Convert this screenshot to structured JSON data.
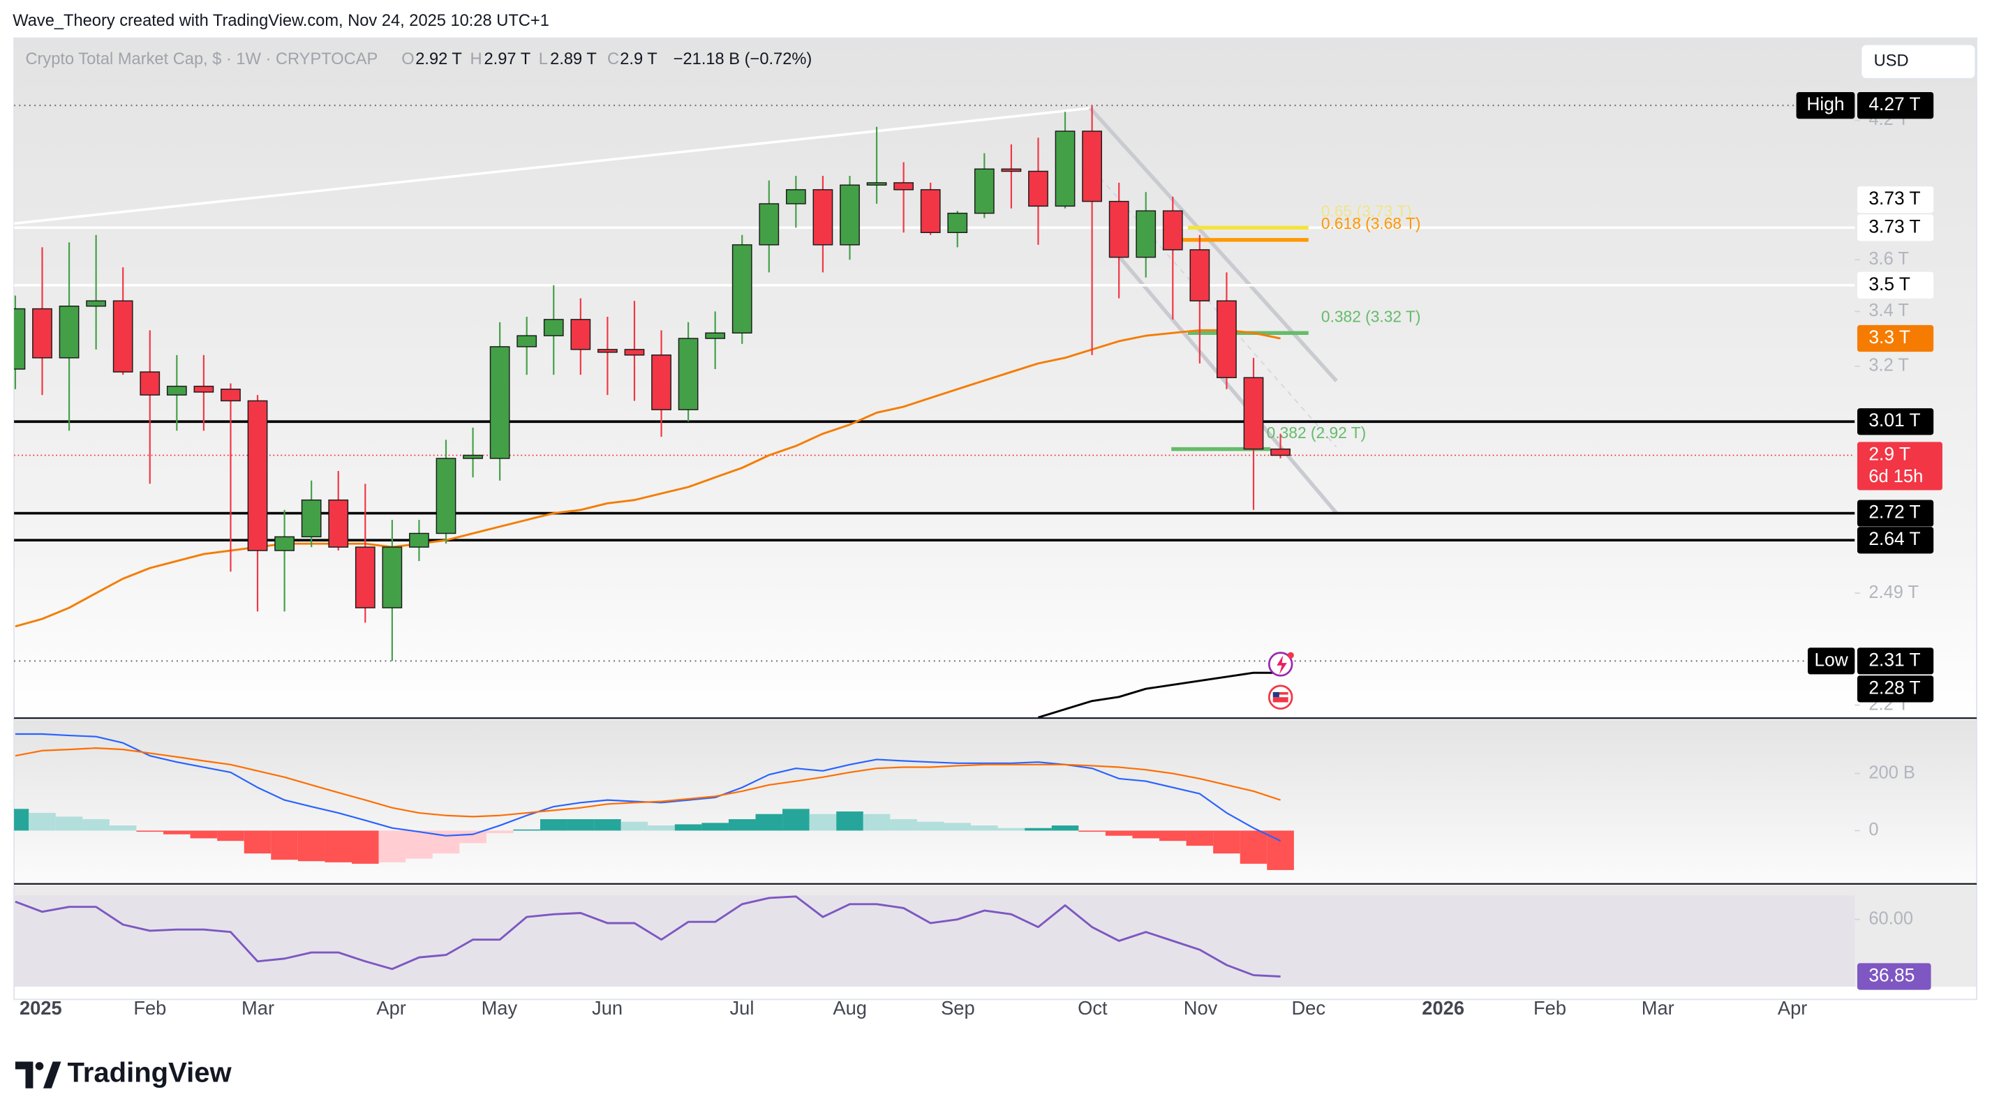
{
  "header": {
    "credit": "Wave_Theory created with TradingView.com, Nov 24, 2025 10:28 UTC+1",
    "currency": "USD"
  },
  "footer": {
    "brand": "TradingView"
  },
  "chart_data": [
    {
      "type": "candlestick",
      "title": "Crypto Total Market Cap, $ · 1W · CRYPTOCAP",
      "ohlc": [
        {
          "key": "O",
          "value": 2.92,
          "label": "2.92 T"
        },
        {
          "key": "H",
          "value": 2.97,
          "label": "2.97 T"
        },
        {
          "key": "L",
          "value": 2.89,
          "label": "2.89 T"
        },
        {
          "key": "C",
          "value": 2.9,
          "label": "2.9 T"
        }
      ],
      "change": "−21.18 B (−0.72%)",
      "x_labels": [
        "2025",
        "Feb",
        "Mar",
        "Apr",
        "May",
        "Jun",
        "Jul",
        "Aug",
        "Sep",
        "Oct",
        "Nov",
        "Dec",
        "2026",
        "Feb",
        "Mar",
        "Apr"
      ],
      "open": [
        3.19,
        3.41,
        3.23,
        3.42,
        3.44,
        3.18,
        3.1,
        3.13,
        3.12,
        3.08,
        2.61,
        2.65,
        2.76,
        2.62,
        2.45,
        2.62,
        2.66,
        2.89,
        2.89,
        3.27,
        3.31,
        3.37,
        3.26,
        3.26,
        3.24,
        3.05,
        3.3,
        3.32,
        3.66,
        3.83,
        3.89,
        3.66,
        3.91,
        3.92,
        3.89,
        3.71,
        3.79,
        3.98,
        3.97,
        3.82,
        4.15,
        3.84,
        3.61,
        3.8,
        3.64,
        3.44,
        3.16,
        2.92
      ],
      "high": [
        3.46,
        3.65,
        3.67,
        3.7,
        3.57,
        3.33,
        3.24,
        3.24,
        3.14,
        3.1,
        2.73,
        2.82,
        2.85,
        2.81,
        2.7,
        2.7,
        2.95,
        2.99,
        3.36,
        3.38,
        3.5,
        3.45,
        3.38,
        3.44,
        3.33,
        3.36,
        3.4,
        3.7,
        3.93,
        3.95,
        3.95,
        3.95,
        4.17,
        4.01,
        3.92,
        3.8,
        4.05,
        4.09,
        4.12,
        4.24,
        4.27,
        3.92,
        3.88,
        3.86,
        3.7,
        3.55,
        3.23,
        2.97
      ],
      "low": [
        3.12,
        3.1,
        2.98,
        3.26,
        3.17,
        2.81,
        2.98,
        2.98,
        2.55,
        2.44,
        2.44,
        2.62,
        2.61,
        2.41,
        2.31,
        2.58,
        2.63,
        2.83,
        2.82,
        3.17,
        3.17,
        3.17,
        3.1,
        3.08,
        2.96,
        3.01,
        3.19,
        3.28,
        3.55,
        3.73,
        3.55,
        3.6,
        3.83,
        3.71,
        3.7,
        3.65,
        3.77,
        3.81,
        3.66,
        3.81,
        3.24,
        3.45,
        3.53,
        3.37,
        3.21,
        3.12,
        2.73,
        2.89
      ],
      "close": [
        3.41,
        3.23,
        3.42,
        3.44,
        3.18,
        3.1,
        3.13,
        3.11,
        3.08,
        2.61,
        2.65,
        2.76,
        2.62,
        2.45,
        2.62,
        2.66,
        2.89,
        2.9,
        3.27,
        3.31,
        3.37,
        3.26,
        3.25,
        3.24,
        3.05,
        3.3,
        3.32,
        3.66,
        3.83,
        3.89,
        3.66,
        3.91,
        3.92,
        3.89,
        3.71,
        3.79,
        3.98,
        3.97,
        3.82,
        4.15,
        3.84,
        3.61,
        3.8,
        3.64,
        3.44,
        3.16,
        2.92,
        2.9
      ],
      "up_color": "#43a047",
      "down_color": "#f23645",
      "log_scale": true,
      "ylim": [
        2.17,
        4.6
      ],
      "yticks": [
        {
          "value": 4.2,
          "label": "4.2 T"
        },
        {
          "value": 3.6,
          "label": "3.6 T"
        },
        {
          "value": 3.4,
          "label": "3.4 T"
        },
        {
          "value": 3.2,
          "label": "3.2 T"
        },
        {
          "value": 2.49,
          "label": "2.49 T"
        },
        {
          "value": 2.2,
          "label": "2.2 T"
        }
      ],
      "overlays": [
        {
          "color": "#f57c00",
          "values": [
            2.4,
            2.42,
            2.45,
            2.49,
            2.53,
            2.56,
            2.58,
            2.6,
            2.61,
            2.62,
            2.63,
            2.63,
            2.63,
            2.63,
            2.62,
            2.63,
            2.64,
            2.66,
            2.68,
            2.7,
            2.72,
            2.73,
            2.75,
            2.76,
            2.78,
            2.8,
            2.83,
            2.86,
            2.9,
            2.93,
            2.97,
            3.0,
            3.04,
            3.06,
            3.09,
            3.12,
            3.15,
            3.18,
            3.21,
            3.23,
            3.26,
            3.29,
            3.31,
            3.32,
            3.33,
            3.33,
            3.32,
            3.3
          ]
        },
        {
          "color": "#000000",
          "values": [
            null,
            null,
            null,
            null,
            null,
            null,
            null,
            null,
            null,
            null,
            null,
            null,
            null,
            null,
            null,
            null,
            null,
            null,
            null,
            null,
            null,
            null,
            null,
            null,
            null,
            null,
            null,
            null,
            null,
            null,
            null,
            null,
            null,
            null,
            null,
            null,
            null,
            null,
            2.17,
            2.19,
            2.21,
            2.22,
            2.24,
            2.25,
            2.26,
            2.27,
            2.28,
            2.28
          ]
        }
      ],
      "fibs": [
        {
          "label": "0.65 (3.73 T)",
          "value": 3.73,
          "color": "#f5e23c"
        },
        {
          "label": "0.618 (3.68 T)",
          "value": 3.68,
          "color": "#ff9800"
        },
        {
          "label": "0.382 (3.32 T)",
          "value": 3.32,
          "color": "#66bb6a"
        },
        {
          "label": "0.382 (2.92 T)",
          "value": 2.92,
          "color": "#66bb6a"
        }
      ],
      "price_labels": [
        {
          "value": 4.27,
          "label": "4.27 T",
          "tag": "High",
          "style": "black",
          "line": "dotted"
        },
        {
          "value": 3.73,
          "label": "3.73 T",
          "style": "white",
          "line": "white"
        },
        {
          "value": 3.73,
          "label": "3.73 T",
          "style": "white"
        },
        {
          "value": 3.5,
          "label": "3.5 T",
          "style": "white",
          "line": "white"
        },
        {
          "value": 3.3,
          "label": "3.3 T",
          "style": "orange"
        },
        {
          "value": 3.01,
          "label": "3.01 T",
          "style": "black",
          "line": "black"
        },
        {
          "value": 2.9,
          "label": "2.9 T",
          "countdown": "6d 15h",
          "style": "red",
          "line": "red-dotted"
        },
        {
          "value": 2.72,
          "label": "2.72 T",
          "style": "black",
          "line": "black"
        },
        {
          "value": 2.64,
          "label": "2.64 T",
          "style": "black",
          "line": "black"
        },
        {
          "value": 2.31,
          "label": "2.31 T",
          "tag": "Low",
          "style": "black",
          "line": "dotted"
        },
        {
          "value": 2.28,
          "label": "2.28 T",
          "style": "black"
        }
      ]
    },
    {
      "type": "macd",
      "histogram": [
        76,
        62,
        49,
        40,
        18,
        -4,
        -13,
        -27,
        -36,
        -80,
        -102,
        -107,
        -111,
        -116,
        -111,
        -98,
        -80,
        -44,
        -9,
        4,
        40,
        40,
        40,
        31,
        18,
        22,
        27,
        40,
        58,
        76,
        58,
        67,
        58,
        40,
        31,
        27,
        18,
        9,
        9,
        18,
        -4,
        -18,
        -27,
        -36,
        -53,
        -80,
        -116,
        -138
      ],
      "macd": [
        338,
        338,
        333,
        329,
        307,
        262,
        240,
        222,
        204,
        151,
        107,
        84,
        62,
        36,
        9,
        -4,
        -18,
        -13,
        18,
        53,
        84,
        98,
        107,
        102,
        98,
        107,
        116,
        151,
        196,
        218,
        209,
        231,
        249,
        244,
        240,
        236,
        236,
        236,
        240,
        231,
        218,
        182,
        173,
        151,
        129,
        62,
        9,
        -36
      ],
      "signal": [
        262,
        280,
        284,
        289,
        284,
        271,
        258,
        244,
        231,
        209,
        187,
        160,
        133,
        107,
        80,
        62,
        53,
        49,
        53,
        62,
        71,
        80,
        93,
        98,
        102,
        111,
        120,
        138,
        160,
        173,
        187,
        204,
        218,
        222,
        222,
        227,
        231,
        231,
        231,
        231,
        227,
        222,
        213,
        200,
        182,
        160,
        138,
        107
      ],
      "macd_color": "#2962ff",
      "signal_color": "#ff6d00",
      "ylim": [
        -182,
        387
      ],
      "yticks": [
        {
          "value": 200,
          "label": "200 B"
        },
        0
      ]
    },
    {
      "type": "line",
      "values": [
        67.2,
        63.1,
        65.1,
        65.1,
        57.9,
        55.4,
        55.9,
        55.9,
        54.9,
        43.0,
        44.1,
        46.6,
        46.6,
        43.0,
        39.9,
        44.6,
        45.6,
        51.8,
        51.8,
        61.0,
        62.1,
        62.6,
        58.5,
        58.5,
        51.8,
        59.0,
        59.0,
        66.2,
        68.7,
        69.3,
        61.0,
        66.2,
        66.2,
        64.6,
        58.5,
        60.0,
        63.6,
        62.1,
        56.9,
        65.7,
        56.9,
        51.3,
        54.9,
        51.3,
        47.7,
        41.5,
        37.4,
        36.85
      ],
      "color": "#7e57c2",
      "ylim": [
        32.7,
        73.9
      ],
      "yticks": [
        {
          "value": 60,
          "label": "60.00"
        }
      ]
    }
  ]
}
